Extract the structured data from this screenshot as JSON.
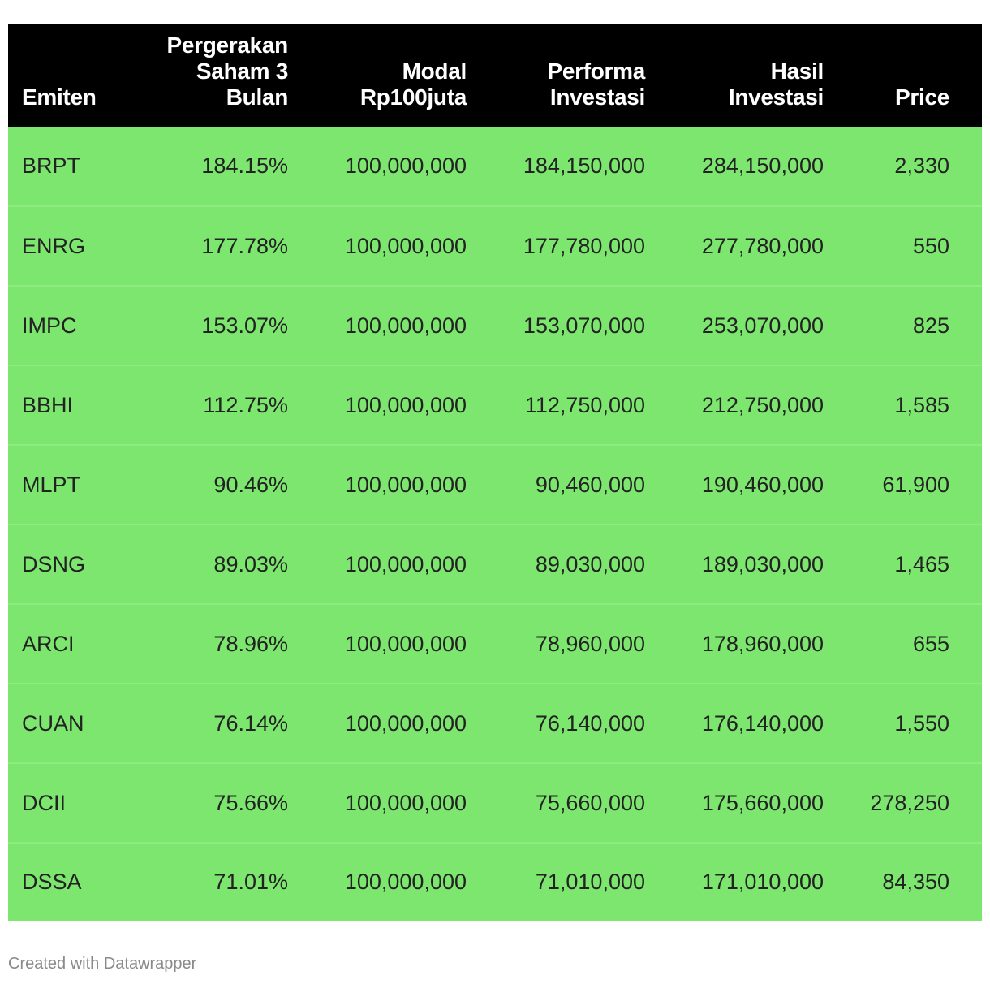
{
  "chart_data": {
    "type": "table",
    "columns": [
      "Emiten",
      "Pergerakan Saham 3 Bulan",
      "Modal Rp100juta",
      "Performa Investasi",
      "Hasil Investasi",
      "Price"
    ],
    "header_lines": [
      [
        "Emiten"
      ],
      [
        "Pergerakan",
        "Saham 3",
        "Bulan"
      ],
      [
        "Modal",
        "Rp100juta"
      ],
      [
        "Performa",
        "Investasi"
      ],
      [
        "Hasil",
        "Investasi"
      ],
      [
        "Price"
      ]
    ],
    "rows": [
      [
        "BRPT",
        "184.15%",
        "100,000,000",
        "184,150,000",
        "284,150,000",
        "2,330"
      ],
      [
        "ENRG",
        "177.78%",
        "100,000,000",
        "177,780,000",
        "277,780,000",
        "550"
      ],
      [
        "IMPC",
        "153.07%",
        "100,000,000",
        "153,070,000",
        "253,070,000",
        "825"
      ],
      [
        "BBHI",
        "112.75%",
        "100,000,000",
        "112,750,000",
        "212,750,000",
        "1,585"
      ],
      [
        "MLPT",
        "90.46%",
        "100,000,000",
        "90,460,000",
        "190,460,000",
        "61,900"
      ],
      [
        "DSNG",
        "89.03%",
        "100,000,000",
        "89,030,000",
        "189,030,000",
        "1,465"
      ],
      [
        "ARCI",
        "78.96%",
        "100,000,000",
        "78,960,000",
        "178,960,000",
        "655"
      ],
      [
        "CUAN",
        "76.14%",
        "100,000,000",
        "76,140,000",
        "176,140,000",
        "1,550"
      ],
      [
        "DCII",
        "75.66%",
        "100,000,000",
        "75,660,000",
        "175,660,000",
        "278,250"
      ],
      [
        "DSSA",
        "71.01%",
        "100,000,000",
        "71,010,000",
        "171,010,000",
        "84,350"
      ]
    ],
    "colors": {
      "header_bg": "#000000",
      "header_text": "#ffffff",
      "row_bg": "#7de66f",
      "row_text": "#222222"
    }
  },
  "footer": {
    "credit": "Created with Datawrapper"
  }
}
